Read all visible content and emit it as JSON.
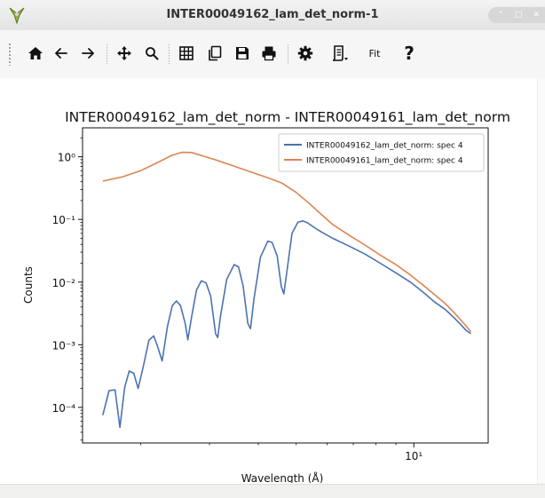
{
  "window": {
    "title": "INTER00049162_lam_det_norm-1",
    "controls": [
      "⌃",
      "▢",
      "✕"
    ]
  },
  "toolbar": {
    "buttons": [
      {
        "name": "home",
        "icon": "home-icon"
      },
      {
        "name": "back",
        "icon": "arrow-left-icon"
      },
      {
        "name": "forward",
        "icon": "arrow-right-icon"
      },
      {
        "name": "pan",
        "icon": "move-icon"
      },
      {
        "name": "zoom",
        "icon": "magnifier-icon"
      },
      {
        "name": "grid",
        "icon": "grid-icon"
      },
      {
        "name": "copy",
        "icon": "copy-icon"
      },
      {
        "name": "save",
        "icon": "save-icon"
      },
      {
        "name": "print",
        "icon": "print-icon"
      },
      {
        "name": "options",
        "icon": "gear-icon"
      },
      {
        "name": "generate-script",
        "icon": "script-icon"
      }
    ],
    "fit_label": "Fit",
    "help_label": "?"
  },
  "chart_data": {
    "type": "line",
    "title": "INTER00049162_lam_det_norm - INTER00049161_lam_det_norm",
    "xlabel": "Wavelength (Å)",
    "ylabel": "Counts",
    "xscale": "log",
    "yscale": "log",
    "xlim": [
      1.42,
      15.5
    ],
    "ylim": [
      2.7e-05,
      2.9
    ],
    "x_ticks": [
      {
        "value": 10,
        "label": "10¹"
      }
    ],
    "y_ticks": [
      {
        "value": 0.0001,
        "label": "10⁻⁴"
      },
      {
        "value": 0.001,
        "label": "10⁻³"
      },
      {
        "value": 0.01,
        "label": "10⁻²"
      },
      {
        "value": 0.1,
        "label": "10⁻¹"
      },
      {
        "value": 1,
        "label": "10⁰"
      }
    ],
    "legend_position": "upper right",
    "grid": false,
    "series": [
      {
        "name": "INTER00049162_lam_det_norm: spec 4",
        "color": "#4c72b0",
        "points": [
          [
            1.6,
            7.5e-05
          ],
          [
            1.66,
            0.000185
          ],
          [
            1.72,
            0.00019
          ],
          [
            1.77,
            4.8e-05
          ],
          [
            1.82,
            0.00021
          ],
          [
            1.87,
            0.00038
          ],
          [
            1.92,
            0.00035
          ],
          [
            1.97,
            0.0002
          ],
          [
            2.03,
            0.00044
          ],
          [
            2.1,
            0.00118
          ],
          [
            2.16,
            0.00138
          ],
          [
            2.21,
            0.00093
          ],
          [
            2.27,
            0.00055
          ],
          [
            2.34,
            0.0019
          ],
          [
            2.41,
            0.0042
          ],
          [
            2.47,
            0.005
          ],
          [
            2.53,
            0.0042
          ],
          [
            2.6,
            0.0022
          ],
          [
            2.64,
            0.0012
          ],
          [
            2.7,
            0.0028
          ],
          [
            2.78,
            0.0075
          ],
          [
            2.86,
            0.0105
          ],
          [
            2.94,
            0.0097
          ],
          [
            3.02,
            0.006
          ],
          [
            3.11,
            0.0015
          ],
          [
            3.15,
            0.0013
          ],
          [
            3.2,
            0.0028
          ],
          [
            3.32,
            0.011
          ],
          [
            3.47,
            0.019
          ],
          [
            3.56,
            0.0175
          ],
          [
            3.66,
            0.0085
          ],
          [
            3.76,
            0.0022
          ],
          [
            3.82,
            0.0018
          ],
          [
            3.9,
            0.0055
          ],
          [
            4.05,
            0.025
          ],
          [
            4.23,
            0.045
          ],
          [
            4.34,
            0.043
          ],
          [
            4.47,
            0.026
          ],
          [
            4.58,
            0.0085
          ],
          [
            4.65,
            0.0065
          ],
          [
            4.72,
            0.013
          ],
          [
            4.88,
            0.06
          ],
          [
            5.05,
            0.09
          ],
          [
            5.2,
            0.095
          ],
          [
            5.35,
            0.088
          ],
          [
            5.55,
            0.075
          ],
          [
            5.8,
            0.063
          ],
          [
            6.2,
            0.05
          ],
          [
            6.8,
            0.038
          ],
          [
            7.5,
            0.028
          ],
          [
            8.2,
            0.02
          ],
          [
            9.0,
            0.014
          ],
          [
            9.8,
            0.01
          ],
          [
            10.6,
            0.0068
          ],
          [
            11.3,
            0.0048
          ],
          [
            12.0,
            0.0037
          ],
          [
            12.6,
            0.0028
          ],
          [
            13.1,
            0.0022
          ],
          [
            13.6,
            0.0017
          ],
          [
            14.0,
            0.0015
          ]
        ]
      },
      {
        "name": "INTER00049161_lam_det_norm: spec 4",
        "color": "#dd8452",
        "points": [
          [
            1.6,
            0.41
          ],
          [
            1.8,
            0.48
          ],
          [
            2.0,
            0.6
          ],
          [
            2.2,
            0.8
          ],
          [
            2.4,
            1.05
          ],
          [
            2.55,
            1.18
          ],
          [
            2.7,
            1.17
          ],
          [
            2.9,
            1.02
          ],
          [
            3.1,
            0.9
          ],
          [
            3.4,
            0.74
          ],
          [
            3.8,
            0.58
          ],
          [
            4.2,
            0.47
          ],
          [
            4.6,
            0.38
          ],
          [
            5.0,
            0.27
          ],
          [
            5.4,
            0.18
          ],
          [
            5.8,
            0.12
          ],
          [
            6.2,
            0.083
          ],
          [
            6.8,
            0.057
          ],
          [
            7.5,
            0.039
          ],
          [
            8.2,
            0.027
          ],
          [
            9.0,
            0.019
          ],
          [
            9.8,
            0.013
          ],
          [
            10.6,
            0.0088
          ],
          [
            11.3,
            0.0063
          ],
          [
            12.0,
            0.0046
          ],
          [
            12.6,
            0.0034
          ],
          [
            13.1,
            0.0026
          ],
          [
            13.6,
            0.002
          ],
          [
            14.0,
            0.0016
          ]
        ]
      }
    ]
  }
}
